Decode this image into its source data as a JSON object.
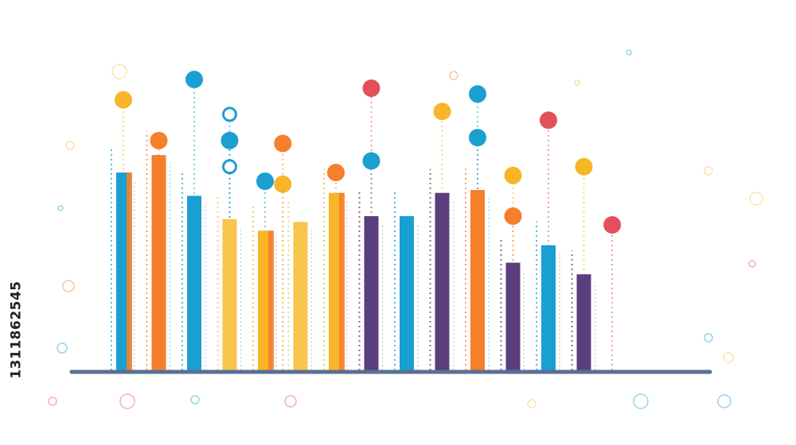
{
  "chart_data": {
    "type": "bar",
    "title": "",
    "xlabel": "",
    "ylabel": "",
    "ylim": [
      0,
      100
    ],
    "grid": false,
    "legend": "none",
    "bars": [
      {
        "value": 68,
        "color": "#1a9fd1",
        "accent": "#f57f2a"
      },
      {
        "value": 74,
        "color": "#f57f2a"
      },
      {
        "value": 60,
        "color": "#1a9fd1"
      },
      {
        "value": 52,
        "color": "#f7c54a"
      },
      {
        "value": 48,
        "color": "#f7b528",
        "accent": "#f57f2a"
      },
      {
        "value": 51,
        "color": "#f7c54a"
      },
      {
        "value": 61,
        "color": "#f7b528",
        "accent": "#f57f2a"
      },
      {
        "value": 53,
        "color": "#5b3e7d"
      },
      {
        "value": 53,
        "color": "#1a9fd1"
      },
      {
        "value": 61,
        "color": "#5b3e7d"
      },
      {
        "value": 62,
        "color": "#f57f2a"
      },
      {
        "value": 37,
        "color": "#5b3e7d"
      },
      {
        "value": 43,
        "color": "#1a9fd1"
      },
      {
        "value": 33,
        "color": "#5b3e7d"
      }
    ],
    "dots": [
      {
        "x": 0.5,
        "y": 93,
        "color": "#f7b528"
      },
      {
        "x": 2.5,
        "y": 100,
        "color": "#1a9fd1"
      },
      {
        "x": 3.5,
        "y": 88,
        "color": "#1a9fd1",
        "hollow": true
      },
      {
        "x": 3.5,
        "y": 79,
        "color": "#1a9fd1"
      },
      {
        "x": 3.5,
        "y": 70,
        "color": "#1a9fd1",
        "hollow": true
      },
      {
        "x": 1.5,
        "y": 79,
        "color": "#f57f2a"
      },
      {
        "x": 4.5,
        "y": 65,
        "color": "#1a9fd1"
      },
      {
        "x": 5.0,
        "y": 78,
        "color": "#f57f2a"
      },
      {
        "x": 5.0,
        "y": 64,
        "color": "#f7b528"
      },
      {
        "x": 6.5,
        "y": 68,
        "color": "#f57f2a"
      },
      {
        "x": 7.5,
        "y": 72,
        "color": "#1a9fd1"
      },
      {
        "x": 7.5,
        "y": 97,
        "color": "#e3505a"
      },
      {
        "x": 9.5,
        "y": 89,
        "color": "#f7b528"
      },
      {
        "x": 10.5,
        "y": 80,
        "color": "#1a9fd1"
      },
      {
        "x": 10.5,
        "y": 95,
        "color": "#1a9fd1"
      },
      {
        "x": 11.5,
        "y": 67,
        "color": "#f7b528"
      },
      {
        "x": 11.5,
        "y": 53,
        "color": "#f57f2a"
      },
      {
        "x": 12.5,
        "y": 86,
        "color": "#e3505a"
      },
      {
        "x": 13.5,
        "y": 70,
        "color": "#f7b528"
      },
      {
        "x": 14.3,
        "y": 50,
        "color": "#e3505a"
      }
    ]
  },
  "watermark": "1311862545",
  "colors": {
    "axis": "#5a6f93",
    "blue": "#1a9fd1",
    "orange": "#f57f2a",
    "yellow": "#f7b528",
    "purple": "#5b3e7d",
    "red": "#e3505a"
  }
}
